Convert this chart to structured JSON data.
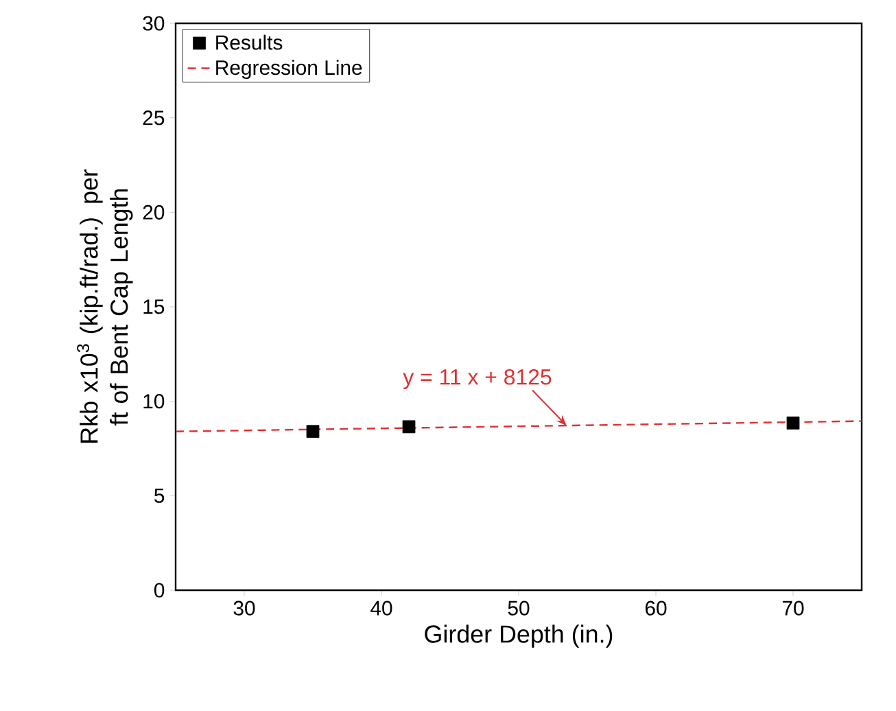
{
  "chart_data": {
    "type": "scatter",
    "xlabel": "Girder Depth (in.)",
    "ylabel": "Rkb x10$^{3}$ (kip.ft/rad.) per ft of Bent Cap Length",
    "xlim": [
      25,
      75
    ],
    "ylim": [
      0,
      30
    ],
    "xticks": [
      30,
      40,
      50,
      60,
      70
    ],
    "yticks": [
      0,
      5,
      10,
      15,
      20,
      25,
      30
    ],
    "grid": false,
    "legend": "top left",
    "series": [
      {
        "name": "Results",
        "color": "#000000",
        "marker": "square",
        "x": [
          35,
          42,
          70
        ],
        "values": [
          8.4,
          8.65,
          8.85
        ]
      },
      {
        "name": "Regression Line",
        "type": "line",
        "color": "#e03030",
        "line_style": "dashed",
        "marker": "none",
        "x": [
          25,
          75
        ],
        "values": [
          8.4,
          8.95
        ]
      }
    ],
    "annotations": [
      {
        "text": "y = 11 x + 8125",
        "x": 53.5,
        "y": 8.7
      }
    ]
  }
}
